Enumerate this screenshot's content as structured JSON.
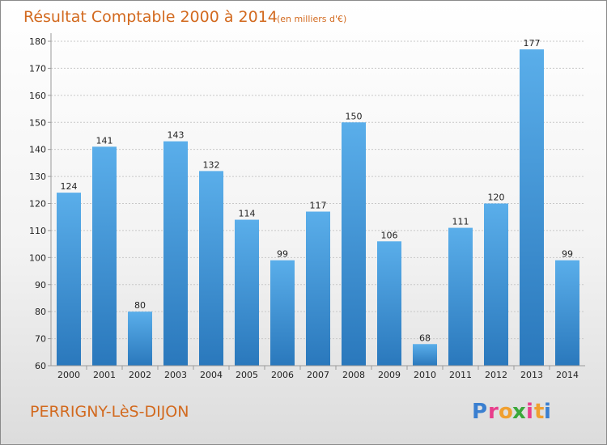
{
  "chart_data": {
    "type": "bar",
    "title": "Résultat Comptable 2000 à 2014",
    "subtitle": "(en milliers d'€)",
    "categories": [
      "2000",
      "2001",
      "2002",
      "2003",
      "2004",
      "2005",
      "2006",
      "2007",
      "2008",
      "2009",
      "2010",
      "2011",
      "2012",
      "2013",
      "2014"
    ],
    "values": [
      124,
      141,
      80,
      143,
      132,
      114,
      99,
      117,
      150,
      106,
      68,
      111,
      120,
      177,
      99
    ],
    "data_labels": [
      "124",
      "141",
      "80",
      "143",
      "132",
      "114",
      "99",
      "117",
      "150",
      "106",
      "68",
      "111",
      "120",
      "177",
      "99"
    ],
    "ylim": [
      60,
      180
    ],
    "yticks": [
      60,
      70,
      80,
      90,
      100,
      110,
      120,
      130,
      140,
      150,
      160,
      170,
      180
    ],
    "ytick_labels": [
      "60",
      "70",
      "80",
      "90",
      "100",
      "110",
      "120",
      "130",
      "140",
      "150",
      "160",
      "170",
      "180"
    ],
    "grid": true,
    "xlabel": "",
    "ylabel": "",
    "bar_color_top": "#5aaeea",
    "bar_color_bottom": "#2a78bc"
  },
  "footer": {
    "commune": "PERRIGNY-LèS-DIJON",
    "logo": {
      "text": "Proxiti",
      "letters": [
        "P",
        "r",
        "o",
        "x",
        "i",
        "t",
        "i"
      ],
      "colors": [
        "#3a7fd0",
        "#e83e8c",
        "#f0a030",
        "#3aa83a",
        "#e83e8c",
        "#f0a030",
        "#3a7fd0"
      ]
    }
  }
}
